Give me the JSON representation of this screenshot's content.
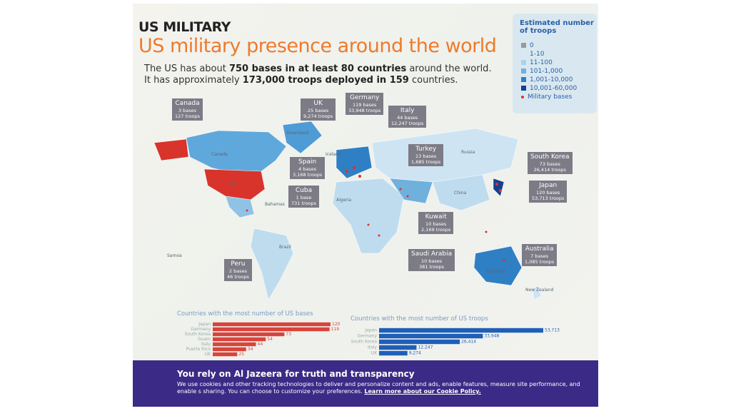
{
  "header": {
    "kicker": "US MILITARY",
    "title": "US military presence around the world",
    "line1": [
      "The US has about ",
      "750 bases in at least 80 countries",
      " around the world."
    ],
    "line2": [
      "It has approximately ",
      "173,000 troops deployed in 159",
      " countries."
    ]
  },
  "legend": {
    "title": "Estimated number of troops",
    "items": [
      {
        "label": "0",
        "color": "#9a9a9a"
      },
      {
        "label": "1-10",
        "color": "#d6e9f5"
      },
      {
        "label": "11-100",
        "color": "#a9d2ec"
      },
      {
        "label": "101-1,000",
        "color": "#6fb0dd"
      },
      {
        "label": "1,001-10,000",
        "color": "#2f7fc4"
      },
      {
        "label": "10,001-60,000",
        "color": "#173f8f"
      }
    ],
    "bases_label": "Military bases"
  },
  "callouts": [
    {
      "name": "Canada",
      "bases": "3 bases",
      "troops": "127 troops"
    },
    {
      "name": "UK",
      "bases": "25 bases",
      "troops": "9,274 troops"
    },
    {
      "name": "Germany",
      "bases": "119 bases",
      "troops": "33,948 troops"
    },
    {
      "name": "Italy",
      "bases": "44 bases",
      "troops": "12,247 troops"
    },
    {
      "name": "Spain",
      "bases": "4 bases",
      "troops": "3,168 troops"
    },
    {
      "name": "Cuba",
      "bases": "1 base",
      "troops": "731 troops"
    },
    {
      "name": "Turkey",
      "bases": "13 bases",
      "troops": "1,685 troops"
    },
    {
      "name": "South Korea",
      "bases": "73 bases",
      "troops": "26,414 troops"
    },
    {
      "name": "Japan",
      "bases": "120 bases",
      "troops": "53,713 troops"
    },
    {
      "name": "Kuwait",
      "bases": "10 bases",
      "troops": "2,169 troops"
    },
    {
      "name": "Saudi Arabia",
      "bases": "10 bases",
      "troops": "381 troops"
    },
    {
      "name": "Australia",
      "bases": "7 bases",
      "troops": "1,085 troops"
    },
    {
      "name": "Peru",
      "bases": "2 bases",
      "troops": "46 troops"
    }
  ],
  "map_labels": [
    "Greenland",
    "Canada",
    "USA",
    "Iceland",
    "Russia",
    "China",
    "Brazil",
    "Australia",
    "New Zealand",
    "Samoa",
    "Bahamas",
    "Algeria"
  ],
  "bases_chart": {
    "title": "Countries with the most number of US bases",
    "categories": [
      "Japan",
      "Germany",
      "South Korea",
      "Guam",
      "Italy",
      "Puerto Rico",
      "UK"
    ],
    "values": [
      120,
      119,
      73,
      54,
      44,
      34,
      25
    ]
  },
  "troops_chart": {
    "title": "Countries with the most number of US troops",
    "categories": [
      "Japan",
      "Germany",
      "South Korea",
      "Italy",
      "UK"
    ],
    "values": [
      53713,
      33948,
      26414,
      12247,
      9274
    ],
    "value_labels": [
      "53,713",
      "33,948",
      "26,414",
      "12,247",
      "9,274"
    ]
  },
  "banner": {
    "title": "You rely on Al Jazeera for truth and transparency",
    "text": "We use cookies and other tracking technologies to deliver and personalize content and ads, enable features, measure site performance, and enable s sharing. You can choose to customize your preferences.",
    "link": "Learn more about our Cookie Policy."
  }
}
